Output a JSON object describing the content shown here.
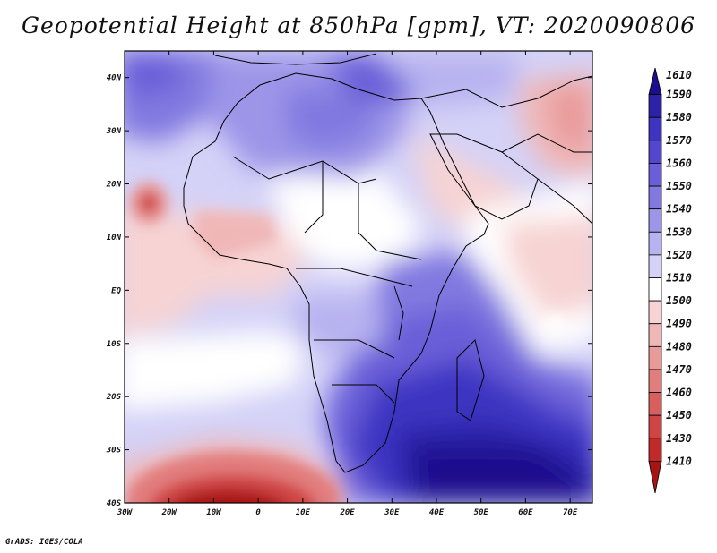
{
  "title": "Geopotential Height at 850hPa [gpm], VT: 2020090806",
  "footer": "GrADS: IGES/COLA",
  "map": {
    "projection": "latlon",
    "lon_range": [
      -30,
      75
    ],
    "lat_range": [
      -40,
      45
    ],
    "lon_ticks": [
      "30W",
      "20W",
      "10W",
      "0",
      "10E",
      "20E",
      "30E",
      "40E",
      "50E",
      "60E",
      "70E"
    ],
    "lat_ticks": [
      "40N",
      "30N",
      "20N",
      "10N",
      "EQ",
      "10S",
      "20S",
      "30S",
      "40S"
    ]
  },
  "colorbar": {
    "levels": [
      "1610",
      "1590",
      "1580",
      "1570",
      "1560",
      "1550",
      "1540",
      "1530",
      "1520",
      "1510",
      "1500",
      "1490",
      "1480",
      "1470",
      "1460",
      "1450",
      "1430",
      "1410"
    ],
    "colors": [
      "#1a0f8c",
      "#2c22a8",
      "#3e34c2",
      "#5447cf",
      "#6a5fd8",
      "#8279e0",
      "#9c95e8",
      "#b7b3f0",
      "#d4d2f7",
      "#ffffff",
      "#f7d3d3",
      "#f0b7b7",
      "#e99a9a",
      "#e27d7d",
      "#d95f5f",
      "#cf4444",
      "#c22a2a",
      "#a81414"
    ]
  }
}
